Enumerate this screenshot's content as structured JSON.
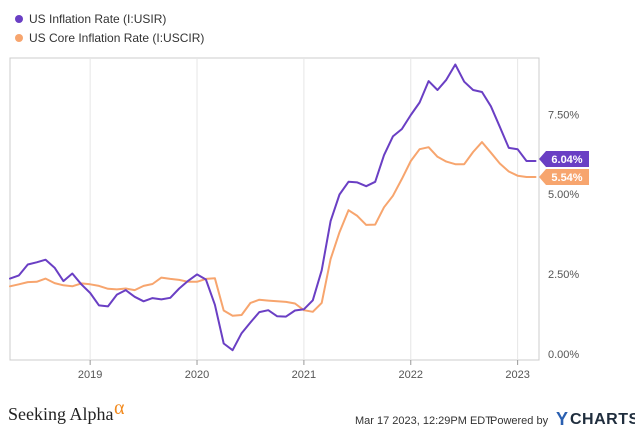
{
  "chart_data": {
    "type": "line",
    "title": "",
    "xlabel": "",
    "ylabel": "",
    "ylim": [
      0,
      9.2
    ],
    "xlim": [
      2018.25,
      2023.2
    ],
    "y_ticks": [
      {
        "value": 0,
        "label": "0.00%"
      },
      {
        "value": 2.5,
        "label": "2.50%"
      },
      {
        "value": 5.0,
        "label": "5.00%"
      },
      {
        "value": 7.5,
        "label": "7.50%"
      }
    ],
    "x_ticks": [
      {
        "value": 2019,
        "label": "2019"
      },
      {
        "value": 2020,
        "label": "2020"
      },
      {
        "value": 2021,
        "label": "2021"
      },
      {
        "value": 2022,
        "label": "2022"
      },
      {
        "value": 2023,
        "label": "2023"
      }
    ],
    "grid": "vertical-year-lines",
    "legend": "top-left",
    "series": [
      {
        "name": "US Inflation Rate (I:USIR)",
        "color": "#6a3fc4",
        "last_label": "6.04%",
        "x": [
          2018.25,
          2018.333,
          2018.417,
          2018.5,
          2018.583,
          2018.667,
          2018.75,
          2018.833,
          2018.917,
          2019.0,
          2019.083,
          2019.167,
          2019.25,
          2019.333,
          2019.417,
          2019.5,
          2019.583,
          2019.667,
          2019.75,
          2019.833,
          2019.917,
          2020.0,
          2020.083,
          2020.167,
          2020.25,
          2020.333,
          2020.417,
          2020.5,
          2020.583,
          2020.667,
          2020.75,
          2020.833,
          2020.917,
          2021.0,
          2021.083,
          2021.167,
          2021.25,
          2021.333,
          2021.417,
          2021.5,
          2021.583,
          2021.667,
          2021.75,
          2021.833,
          2021.917,
          2022.0,
          2022.083,
          2022.167,
          2022.25,
          2022.333,
          2022.417,
          2022.5,
          2022.583,
          2022.667,
          2022.75,
          2022.833,
          2022.917,
          2023.0,
          2023.083,
          2023.167
        ],
        "y": [
          2.36,
          2.46,
          2.8,
          2.87,
          2.95,
          2.7,
          2.28,
          2.52,
          2.18,
          1.91,
          1.52,
          1.49,
          1.86,
          2.0,
          1.79,
          1.65,
          1.75,
          1.71,
          1.76,
          2.05,
          2.29,
          2.49,
          2.33,
          1.54,
          0.33,
          0.12,
          0.65,
          0.99,
          1.31,
          1.37,
          1.18,
          1.17,
          1.36,
          1.4,
          1.68,
          2.62,
          4.16,
          4.99,
          5.39,
          5.37,
          5.25,
          5.39,
          6.22,
          6.81,
          7.04,
          7.48,
          7.87,
          8.54,
          8.26,
          8.58,
          9.06,
          8.52,
          8.26,
          8.2,
          7.75,
          7.11,
          6.45,
          6.41,
          6.04,
          6.04
        ]
      },
      {
        "name": "US Core Inflation Rate (I:USCIR)",
        "color": "#f7a56e",
        "last_label": "5.54%",
        "x": [
          2018.25,
          2018.333,
          2018.417,
          2018.5,
          2018.583,
          2018.667,
          2018.75,
          2018.833,
          2018.917,
          2019.0,
          2019.083,
          2019.167,
          2019.25,
          2019.333,
          2019.417,
          2019.5,
          2019.583,
          2019.667,
          2019.75,
          2019.833,
          2019.917,
          2020.0,
          2020.083,
          2020.167,
          2020.25,
          2020.333,
          2020.417,
          2020.5,
          2020.583,
          2020.667,
          2020.75,
          2020.833,
          2020.917,
          2021.0,
          2021.083,
          2021.167,
          2021.25,
          2021.333,
          2021.417,
          2021.5,
          2021.583,
          2021.667,
          2021.75,
          2021.833,
          2021.917,
          2022.0,
          2022.083,
          2022.167,
          2022.25,
          2022.333,
          2022.417,
          2022.5,
          2022.583,
          2022.667,
          2022.75,
          2022.833,
          2022.917,
          2023.0,
          2023.083,
          2023.167
        ],
        "y": [
          2.12,
          2.18,
          2.25,
          2.26,
          2.36,
          2.22,
          2.15,
          2.12,
          2.21,
          2.18,
          2.13,
          2.04,
          2.02,
          2.05,
          2.0,
          2.13,
          2.19,
          2.39,
          2.35,
          2.32,
          2.26,
          2.26,
          2.35,
          2.37,
          1.36,
          1.2,
          1.22,
          1.6,
          1.7,
          1.67,
          1.65,
          1.63,
          1.58,
          1.37,
          1.32,
          1.6,
          2.97,
          3.81,
          4.5,
          4.32,
          4.04,
          4.05,
          4.59,
          4.95,
          5.48,
          6.04,
          6.41,
          6.47,
          6.17,
          6.02,
          5.94,
          5.94,
          6.32,
          6.63,
          6.3,
          5.96,
          5.71,
          5.58,
          5.54,
          5.54
        ]
      }
    ]
  },
  "footer": {
    "brand": "Seeking Alpha",
    "brand_mark": "α",
    "timestamp": "Mar 17 2023, 12:29PM EDT.",
    "powered_by": "Powered by",
    "ycharts_y": "Y",
    "ycharts_rest": "CHARTS"
  },
  "colors": {
    "plot_border": "#cccccc",
    "gridline": "#e6e6e6"
  }
}
